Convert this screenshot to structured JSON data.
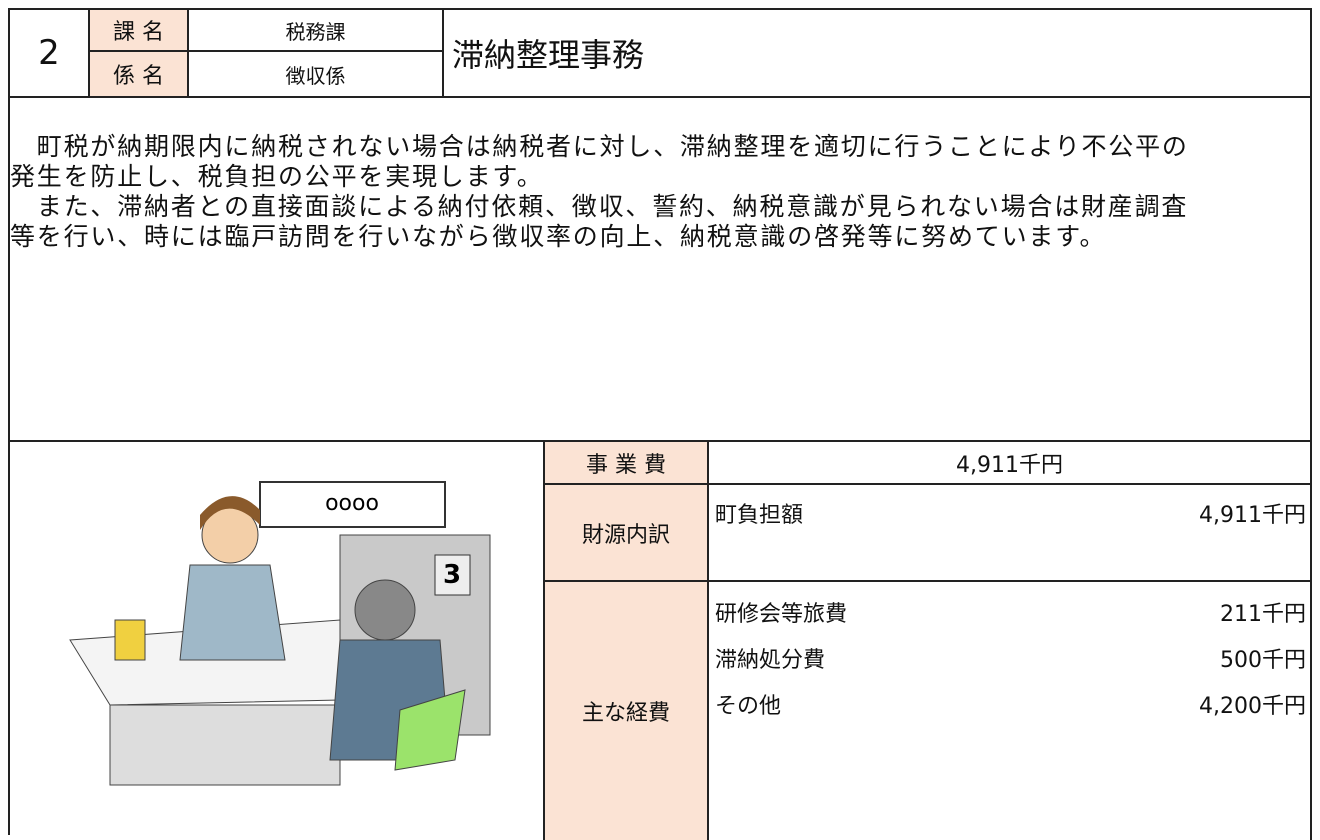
{
  "header": {
    "number": "2",
    "section_label": "課 名",
    "section": "税務課",
    "unit_label": "係 名",
    "unit": "徴収係",
    "title": "滞納整理事務"
  },
  "description": {
    "lines": [
      "　町税が納期限内に納税されない場合は納税者に対し、滞納整理を適切に行うことにより不公平の",
      "発生を防止し、税負担の公平を実現します。",
      "　また、滞納者との直接面談による納付依頼、徴収、誓約、納税意識が見られない場合は財産調査",
      "等を行い、時には臨戸訪問を行いながら徴収率の向上、納税意識の啓発等に努めています。"
    ]
  },
  "illustration": {
    "sign": "oooo",
    "number": "3"
  },
  "budget": {
    "total_label": "事 業 費",
    "total": "4,911千円",
    "funding_label": "財源内訳",
    "funding": [
      {
        "name": "町負担額",
        "amount": "4,911千円"
      }
    ],
    "expenses_label": "主な経費",
    "expenses": [
      {
        "name": "研修会等旅費",
        "amount": "211千円"
      },
      {
        "name": "滞納処分費",
        "amount": "500千円"
      },
      {
        "name": "その他",
        "amount": "4,200千円"
      }
    ]
  }
}
